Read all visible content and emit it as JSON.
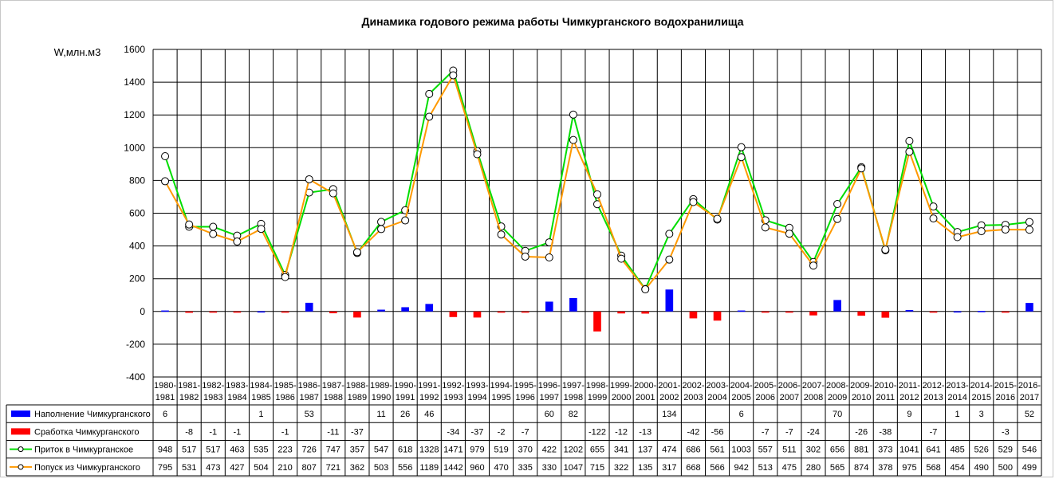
{
  "chart_data": {
    "type": "line",
    "title": "Динамика годового режима работы Чимкурганского водохранилища",
    "ylabel": "W,млн.м3",
    "ylim": [
      -400,
      1600
    ],
    "yticks": [
      1600,
      1400,
      1200,
      1000,
      800,
      600,
      400,
      200,
      0,
      -200,
      -400
    ],
    "grid": true,
    "legend": "bottom-left data table",
    "categories": [
      [
        "1980-",
        "1981"
      ],
      [
        "1981-",
        "1982"
      ],
      [
        "1982-",
        "1983"
      ],
      [
        "1983-",
        "1984"
      ],
      [
        "1984-",
        "1985"
      ],
      [
        "1985-",
        "1986"
      ],
      [
        "1986-",
        "1987"
      ],
      [
        "1987-",
        "1988"
      ],
      [
        "1988-",
        "1989"
      ],
      [
        "1989-",
        "1990"
      ],
      [
        "1990-",
        "1991"
      ],
      [
        "1991-",
        "1992"
      ],
      [
        "1992-",
        "1993"
      ],
      [
        "1993-",
        "1994"
      ],
      [
        "1994-",
        "1995"
      ],
      [
        "1995-",
        "1996"
      ],
      [
        "1996-",
        "1997"
      ],
      [
        "1997-",
        "1998"
      ],
      [
        "1998-",
        "1999"
      ],
      [
        "1999-",
        "2000"
      ],
      [
        "2000-",
        "2001"
      ],
      [
        "2001-",
        "2002"
      ],
      [
        "2002-",
        "2003"
      ],
      [
        "2003-",
        "2004"
      ],
      [
        "2004-",
        "2005"
      ],
      [
        "2005-",
        "2006"
      ],
      [
        "2006-",
        "2007"
      ],
      [
        "2007-",
        "2008"
      ],
      [
        "2008-",
        "2009"
      ],
      [
        "2009-",
        "2010"
      ],
      [
        "2010-",
        "2011"
      ],
      [
        "2011-",
        "2012"
      ],
      [
        "2012-",
        "2013"
      ],
      [
        "2013-",
        "2014"
      ],
      [
        "2014-",
        "2015"
      ],
      [
        "2015-",
        "2016"
      ],
      [
        "2016-",
        "2017"
      ]
    ],
    "series": [
      {
        "name": "Наполнение Чимкурганского",
        "kind": "bar",
        "color": "#0000ff",
        "values": [
          6,
          null,
          null,
          null,
          1,
          null,
          53,
          null,
          null,
          11,
          26,
          46,
          null,
          null,
          null,
          null,
          60,
          82,
          null,
          null,
          null,
          134,
          null,
          null,
          6,
          null,
          null,
          null,
          70,
          null,
          null,
          9,
          null,
          1,
          3,
          null,
          52
        ]
      },
      {
        "name": "Сработка Чимкурганского",
        "kind": "bar",
        "color": "#ff0000",
        "values": [
          null,
          -8,
          -1,
          -1,
          null,
          -1,
          null,
          -11,
          -37,
          null,
          null,
          null,
          -34,
          -37,
          -2,
          -7,
          null,
          null,
          -122,
          -12,
          -13,
          null,
          -42,
          -56,
          null,
          -7,
          -7,
          -24,
          null,
          -26,
          -38,
          null,
          -7,
          null,
          null,
          -3,
          null
        ]
      },
      {
        "name": "Приток в Чимкурганское",
        "kind": "line",
        "color": "#00dd00",
        "values": [
          948,
          517,
          517,
          463,
          535,
          223,
          726,
          747,
          357,
          547,
          618,
          1328,
          1471,
          979,
          519,
          370,
          422,
          1202,
          655,
          341,
          137,
          474,
          686,
          561,
          1003,
          557,
          511,
          302,
          656,
          881,
          373,
          1041,
          641,
          485,
          526,
          529,
          546
        ]
      },
      {
        "name": "Попуск из Чимкурганского",
        "kind": "line",
        "color": "#ff9900",
        "values": [
          795,
          531,
          473,
          427,
          504,
          210,
          807,
          721,
          362,
          503,
          556,
          1189,
          1442,
          960,
          470,
          335,
          330,
          1047,
          715,
          322,
          135,
          317,
          668,
          566,
          942,
          513,
          475,
          280,
          565,
          874,
          378,
          975,
          568,
          454,
          490,
          500,
          499
        ]
      }
    ]
  }
}
